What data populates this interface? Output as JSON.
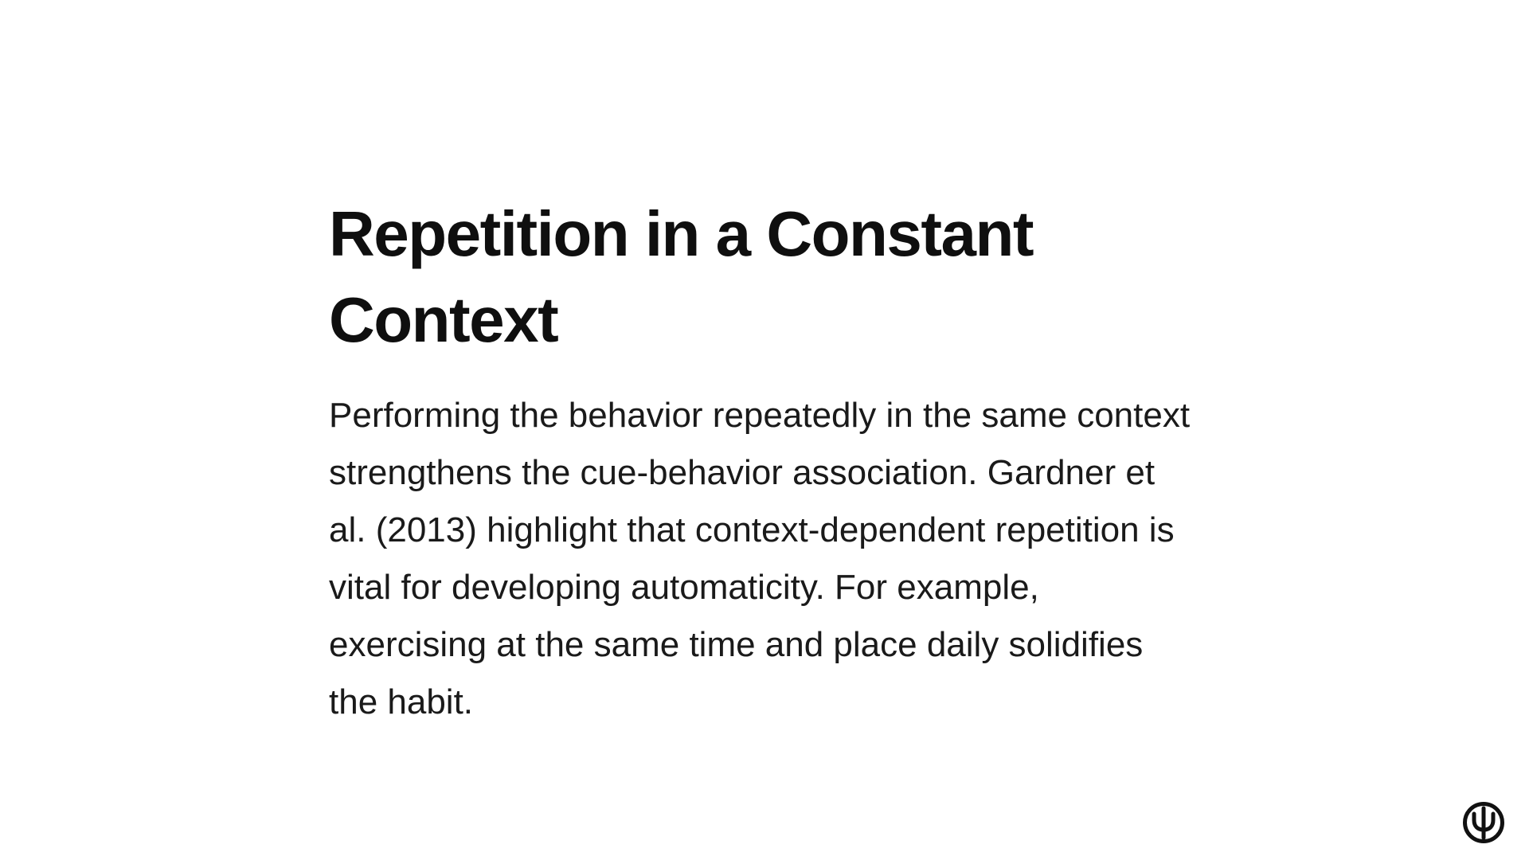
{
  "slide": {
    "title": "Repetition in a Constant Context",
    "body": "Performing the behavior repeatedly in the same context strengthens the cue-behavior association. Gardner et al. (2013) highlight that context-dependent repetition is vital for developing automaticity. For example, exercising at the same time and place daily solidifies the habit."
  },
  "logo": {
    "icon": "psi-logo-icon",
    "color": "#111111"
  },
  "colors": {
    "background": "#ffffff",
    "title": "#0f0f0f",
    "text": "#1a1a1a"
  }
}
